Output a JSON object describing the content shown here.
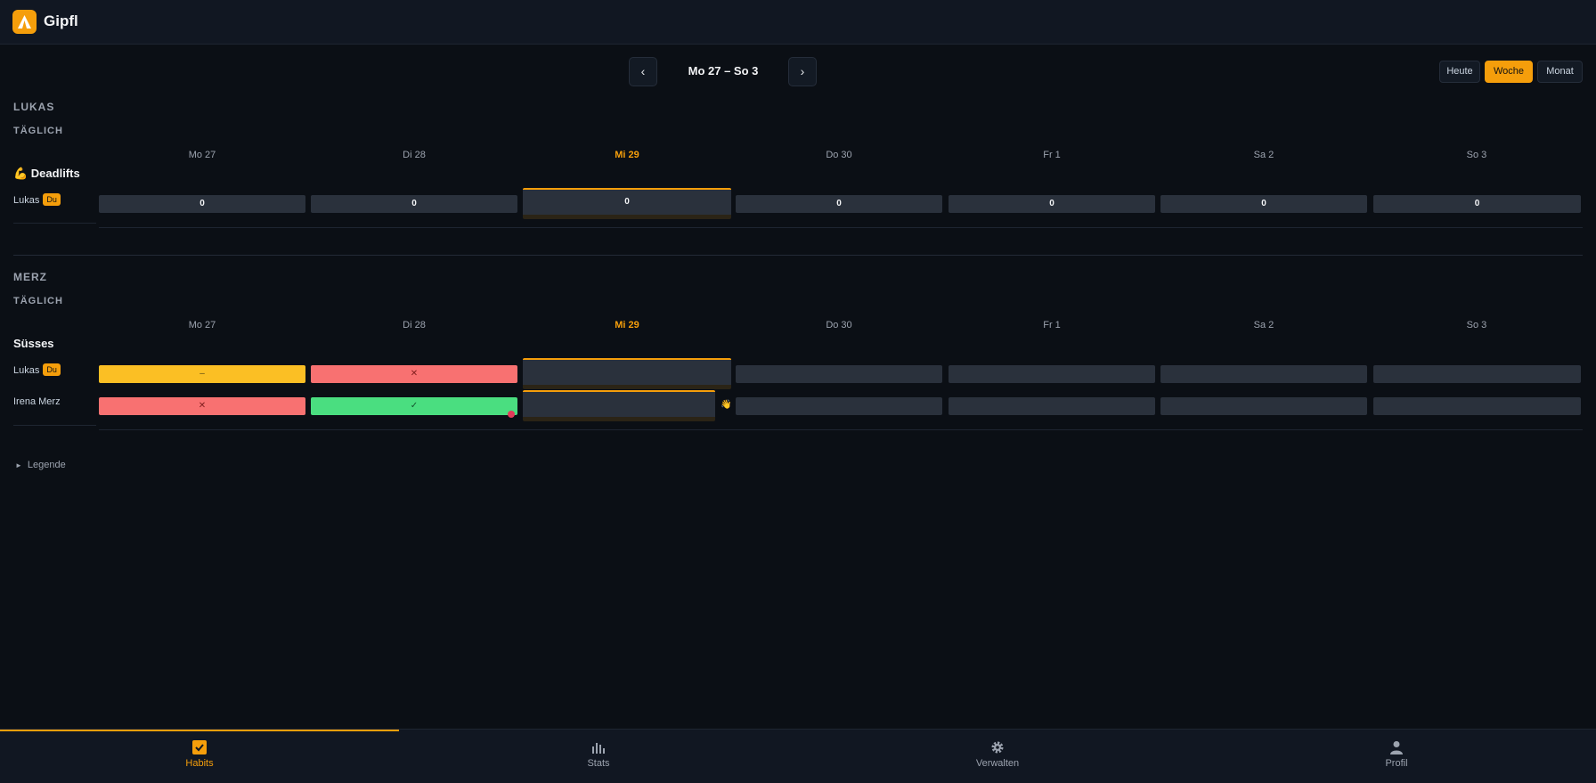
{
  "app": {
    "title": "Gipfl"
  },
  "nav": {
    "prev": "‹",
    "next": "›",
    "range": "Mo 27 – So 3"
  },
  "views": [
    {
      "label": "Heute",
      "active": false
    },
    {
      "label": "Woche",
      "active": true
    },
    {
      "label": "Monat",
      "active": false
    }
  ],
  "days": [
    "Mo 27",
    "Di 28",
    "Mi 29",
    "Do 30",
    "Fr 1",
    "Sa 2",
    "So 3"
  ],
  "today_index": 2,
  "groups": [
    {
      "title": "LUKAS",
      "frequency": "TÄGLICH",
      "habit": "💪 Deadlifts",
      "rows": [
        {
          "person": "Lukas",
          "badge": "Du",
          "cells": [
            "0",
            "0",
            "0",
            "0",
            "0",
            "0",
            "0"
          ]
        }
      ]
    },
    {
      "title": "MERZ",
      "frequency": "TÄGLICH",
      "habit": "Süsses",
      "rows": [
        {
          "person": "Lukas",
          "badge": "Du",
          "cells": [
            "–",
            "✕",
            "",
            "",
            "",
            "",
            ""
          ],
          "states": [
            "partial",
            "fail",
            "empty",
            "empty",
            "empty",
            "empty",
            "empty"
          ]
        },
        {
          "person": "Irena Merz",
          "badge": "",
          "cells": [
            "✕",
            "✓",
            "",
            "",
            "",
            "",
            ""
          ],
          "states": [
            "fail",
            "done",
            "empty",
            "empty",
            "empty",
            "empty",
            "empty"
          ]
        }
      ]
    }
  ],
  "legend": "Legende",
  "tabs": [
    {
      "label": "Habits",
      "icon": "checkbox-icon",
      "active": true
    },
    {
      "label": "Stats",
      "icon": "bar-chart-icon",
      "active": false
    },
    {
      "label": "Verwalten",
      "icon": "gear-icon",
      "active": false
    },
    {
      "label": "Profil",
      "icon": "user-icon",
      "active": false
    }
  ],
  "colors": {
    "accent": "#f59e0b",
    "partial": "#fbbf24",
    "fail": "#f87171",
    "done": "#4ade80",
    "empty": "#2a313c"
  }
}
